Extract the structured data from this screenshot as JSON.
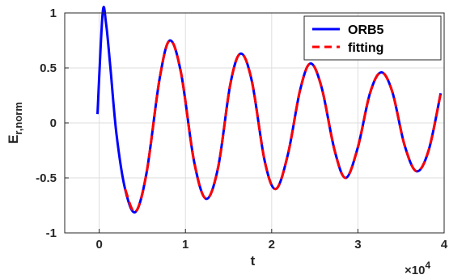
{
  "chart_data": {
    "type": "line",
    "xlabel": "t",
    "ylabel": {
      "main": "E",
      "sub": "r,norm"
    },
    "x_exponent_label": {
      "base": "10",
      "exp": "4",
      "prefix": "×"
    },
    "xlim": [
      -0.4,
      4.0
    ],
    "ylim": [
      -1,
      1
    ],
    "x_scale_factor": 10000,
    "xticks": [
      0,
      1,
      2,
      3,
      4
    ],
    "xtick_labels": [
      "0",
      "1",
      "2",
      "3",
      "4"
    ],
    "yticks": [
      1,
      0.5,
      0,
      -0.5,
      -1
    ],
    "ytick_labels": [
      "1",
      "0.5",
      "0",
      "-0.5",
      "-1"
    ],
    "grid": true,
    "legend_position": "top-right",
    "series": [
      {
        "name": "ORB5",
        "color": "#0000ff",
        "style": "solid",
        "x": [
          -0.02,
          0.04,
          0.08,
          0.13,
          0.2,
          0.3,
          0.42,
          0.55,
          0.7,
          0.82,
          0.95,
          1.1,
          1.24,
          1.38,
          1.52,
          1.64,
          1.77,
          1.92,
          2.05,
          2.19,
          2.33,
          2.45,
          2.58,
          2.73,
          2.86,
          3.0,
          3.14,
          3.27,
          3.4,
          3.54,
          3.68,
          3.82,
          3.96
        ],
        "y": [
          0.08,
          1.0,
          0.9,
          0.5,
          -0.1,
          -0.6,
          -0.81,
          -0.45,
          0.4,
          0.75,
          0.45,
          -0.35,
          -0.69,
          -0.4,
          0.35,
          0.63,
          0.38,
          -0.35,
          -0.6,
          -0.28,
          0.3,
          0.54,
          0.32,
          -0.25,
          -0.5,
          -0.22,
          0.27,
          0.46,
          0.28,
          -0.2,
          -0.44,
          -0.25,
          0.27
        ]
      },
      {
        "name": "fitting",
        "color": "#ff0000",
        "style": "dashed",
        "x": [
          0.3,
          0.42,
          0.55,
          0.7,
          0.82,
          0.95,
          1.1,
          1.24,
          1.38,
          1.52,
          1.64,
          1.77,
          1.92,
          2.05,
          2.19,
          2.33,
          2.45,
          2.58,
          2.73,
          2.86,
          3.0,
          3.14,
          3.27,
          3.4,
          3.54,
          3.68,
          3.82,
          3.96
        ],
        "y": [
          -0.6,
          -0.81,
          -0.45,
          0.4,
          0.75,
          0.45,
          -0.35,
          -0.69,
          -0.4,
          0.35,
          0.63,
          0.38,
          -0.35,
          -0.6,
          -0.28,
          0.3,
          0.54,
          0.32,
          -0.25,
          -0.5,
          -0.22,
          0.27,
          0.46,
          0.28,
          -0.2,
          -0.44,
          -0.25,
          0.27
        ]
      }
    ]
  }
}
